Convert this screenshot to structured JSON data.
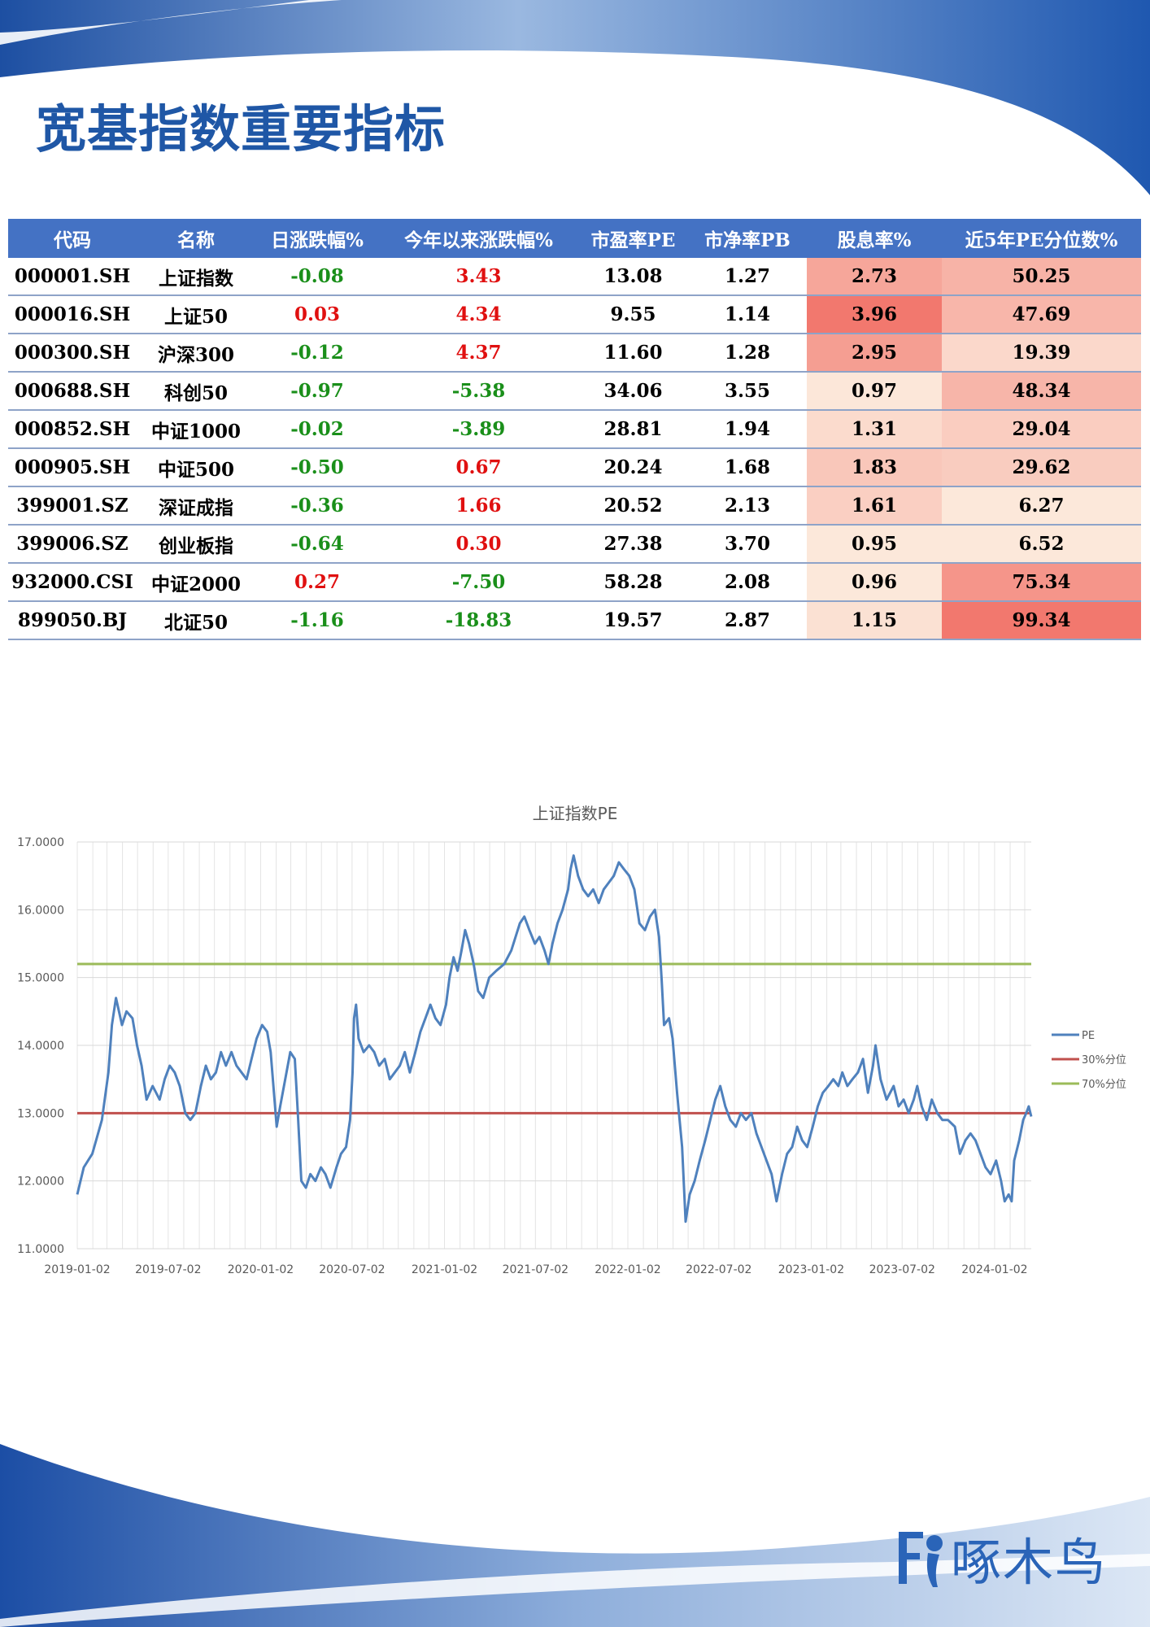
{
  "page": {
    "title": "宽基指数重要指标",
    "brand": "啄木鸟",
    "colors": {
      "title": "#1f57a6",
      "header_bg": "#4472c4",
      "up": "#e01010",
      "down": "#1a8f1a"
    }
  },
  "table": {
    "headers": [
      "代码",
      "名称",
      "日涨跌幅%",
      "今年以来涨跌幅%",
      "市盈率PE",
      "市净率PB",
      "股息率%",
      "近5年PE分位数%"
    ],
    "rows": [
      {
        "code": "000001.SH",
        "name": "上证指数",
        "day": "-0.08",
        "ytd": "3.43",
        "pe": "13.08",
        "pb": "1.27",
        "div": "2.73",
        "pct": "50.25"
      },
      {
        "code": "000016.SH",
        "name": "上证50",
        "day": "0.03",
        "ytd": "4.34",
        "pe": "9.55",
        "pb": "1.14",
        "div": "3.96",
        "pct": "47.69"
      },
      {
        "code": "000300.SH",
        "name": "沪深300",
        "day": "-0.12",
        "ytd": "4.37",
        "pe": "11.60",
        "pb": "1.28",
        "div": "2.95",
        "pct": "19.39"
      },
      {
        "code": "000688.SH",
        "name": "科创50",
        "day": "-0.97",
        "ytd": "-5.38",
        "pe": "34.06",
        "pb": "3.55",
        "div": "0.97",
        "pct": "48.34"
      },
      {
        "code": "000852.SH",
        "name": "中证1000",
        "day": "-0.02",
        "ytd": "-3.89",
        "pe": "28.81",
        "pb": "1.94",
        "div": "1.31",
        "pct": "29.04"
      },
      {
        "code": "000905.SH",
        "name": "中证500",
        "day": "-0.50",
        "ytd": "0.67",
        "pe": "20.24",
        "pb": "1.68",
        "div": "1.83",
        "pct": "29.62"
      },
      {
        "code": "399001.SZ",
        "name": "深证成指",
        "day": "-0.36",
        "ytd": "1.66",
        "pe": "20.52",
        "pb": "2.13",
        "div": "1.61",
        "pct": "6.27"
      },
      {
        "code": "399006.SZ",
        "name": "创业板指",
        "day": "-0.64",
        "ytd": "0.30",
        "pe": "27.38",
        "pb": "3.70",
        "div": "0.95",
        "pct": "6.52"
      },
      {
        "code": "932000.CSI",
        "name": "中证2000",
        "day": "0.27",
        "ytd": "-7.50",
        "pe": "58.28",
        "pb": "2.08",
        "div": "0.96",
        "pct": "75.34"
      },
      {
        "code": "899050.BJ",
        "name": "北证50",
        "day": "-1.16",
        "ytd": "-18.83",
        "pe": "19.57",
        "pb": "2.87",
        "div": "1.15",
        "pct": "99.34"
      }
    ]
  },
  "chart_data": {
    "type": "line",
    "title": "上证指数PE",
    "xlabel": "",
    "ylabel": "",
    "ylim": [
      11,
      17
    ],
    "y_ticks": [
      "11.0000",
      "12.0000",
      "13.0000",
      "14.0000",
      "15.0000",
      "16.0000",
      "17.0000"
    ],
    "x_ticks": [
      "2019-01-02",
      "2019-07-02",
      "2020-01-02",
      "2020-07-02",
      "2021-01-02",
      "2021-07-02",
      "2022-01-02",
      "2022-07-02",
      "2023-01-02",
      "2023-07-02",
      "2024-01-02"
    ],
    "x_range": [
      "2019-01-02",
      "2024-03-15"
    ],
    "grid": true,
    "legend_position": "right",
    "series": [
      {
        "name": "PE",
        "color": "#4f81bd",
        "points": [
          [
            "2019-01-02",
            11.8
          ],
          [
            "2019-01-15",
            12.2
          ],
          [
            "2019-02-01",
            12.4
          ],
          [
            "2019-02-20",
            12.9
          ],
          [
            "2019-03-05",
            13.6
          ],
          [
            "2019-03-12",
            14.3
          ],
          [
            "2019-03-20",
            14.7
          ],
          [
            "2019-04-01",
            14.3
          ],
          [
            "2019-04-10",
            14.5
          ],
          [
            "2019-04-22",
            14.4
          ],
          [
            "2019-05-01",
            14.0
          ],
          [
            "2019-05-10",
            13.7
          ],
          [
            "2019-05-20",
            13.2
          ],
          [
            "2019-06-01",
            13.4
          ],
          [
            "2019-06-15",
            13.2
          ],
          [
            "2019-06-25",
            13.5
          ],
          [
            "2019-07-05",
            13.7
          ],
          [
            "2019-07-15",
            13.6
          ],
          [
            "2019-07-25",
            13.4
          ],
          [
            "2019-08-05",
            13.0
          ],
          [
            "2019-08-15",
            12.9
          ],
          [
            "2019-08-25",
            13.0
          ],
          [
            "2019-09-05",
            13.4
          ],
          [
            "2019-09-15",
            13.7
          ],
          [
            "2019-09-25",
            13.5
          ],
          [
            "2019-10-05",
            13.6
          ],
          [
            "2019-10-15",
            13.9
          ],
          [
            "2019-10-25",
            13.7
          ],
          [
            "2019-11-05",
            13.9
          ],
          [
            "2019-11-15",
            13.7
          ],
          [
            "2019-11-25",
            13.6
          ],
          [
            "2019-12-05",
            13.5
          ],
          [
            "2019-12-15",
            13.8
          ],
          [
            "2019-12-25",
            14.1
          ],
          [
            "2020-01-05",
            14.3
          ],
          [
            "2020-01-15",
            14.2
          ],
          [
            "2020-01-22",
            13.9
          ],
          [
            "2020-02-03",
            12.8
          ],
          [
            "2020-02-10",
            13.1
          ],
          [
            "2020-02-20",
            13.5
          ],
          [
            "2020-03-01",
            13.9
          ],
          [
            "2020-03-10",
            13.8
          ],
          [
            "2020-03-16",
            13.0
          ],
          [
            "2020-03-23",
            12.0
          ],
          [
            "2020-04-01",
            11.9
          ],
          [
            "2020-04-10",
            12.1
          ],
          [
            "2020-04-20",
            12.0
          ],
          [
            "2020-05-01",
            12.2
          ],
          [
            "2020-05-10",
            12.1
          ],
          [
            "2020-05-20",
            11.9
          ],
          [
            "2020-06-01",
            12.2
          ],
          [
            "2020-06-10",
            12.4
          ],
          [
            "2020-06-20",
            12.5
          ],
          [
            "2020-06-28",
            12.9
          ],
          [
            "2020-07-03",
            13.6
          ],
          [
            "2020-07-06",
            14.4
          ],
          [
            "2020-07-10",
            14.6
          ],
          [
            "2020-07-15",
            14.1
          ],
          [
            "2020-07-25",
            13.9
          ],
          [
            "2020-08-05",
            14.0
          ],
          [
            "2020-08-15",
            13.9
          ],
          [
            "2020-08-25",
            13.7
          ],
          [
            "2020-09-05",
            13.8
          ],
          [
            "2020-09-15",
            13.5
          ],
          [
            "2020-09-25",
            13.6
          ],
          [
            "2020-10-05",
            13.7
          ],
          [
            "2020-10-15",
            13.9
          ],
          [
            "2020-10-25",
            13.6
          ],
          [
            "2020-11-05",
            13.9
          ],
          [
            "2020-11-15",
            14.2
          ],
          [
            "2020-11-25",
            14.4
          ],
          [
            "2020-12-05",
            14.6
          ],
          [
            "2020-12-15",
            14.4
          ],
          [
            "2020-12-25",
            14.3
          ],
          [
            "2021-01-05",
            14.6
          ],
          [
            "2021-01-12",
            15.0
          ],
          [
            "2021-01-20",
            15.3
          ],
          [
            "2021-01-28",
            15.1
          ],
          [
            "2021-02-05",
            15.4
          ],
          [
            "2021-02-12",
            15.7
          ],
          [
            "2021-02-20",
            15.5
          ],
          [
            "2021-03-01",
            15.2
          ],
          [
            "2021-03-10",
            14.8
          ],
          [
            "2021-03-20",
            14.7
          ],
          [
            "2021-04-01",
            15.0
          ],
          [
            "2021-04-15",
            15.1
          ],
          [
            "2021-05-01",
            15.2
          ],
          [
            "2021-05-15",
            15.4
          ],
          [
            "2021-06-01",
            15.8
          ],
          [
            "2021-06-10",
            15.9
          ],
          [
            "2021-06-20",
            15.7
          ],
          [
            "2021-07-01",
            15.5
          ],
          [
            "2021-07-10",
            15.6
          ],
          [
            "2021-07-20",
            15.4
          ],
          [
            "2021-07-28",
            15.2
          ],
          [
            "2021-08-05",
            15.5
          ],
          [
            "2021-08-15",
            15.8
          ],
          [
            "2021-08-25",
            16.0
          ],
          [
            "2021-09-05",
            16.3
          ],
          [
            "2021-09-10",
            16.6
          ],
          [
            "2021-09-16",
            16.8
          ],
          [
            "2021-09-25",
            16.5
          ],
          [
            "2021-10-05",
            16.3
          ],
          [
            "2021-10-15",
            16.2
          ],
          [
            "2021-10-25",
            16.3
          ],
          [
            "2021-11-05",
            16.1
          ],
          [
            "2021-11-15",
            16.3
          ],
          [
            "2021-11-25",
            16.4
          ],
          [
            "2021-12-05",
            16.5
          ],
          [
            "2021-12-15",
            16.7
          ],
          [
            "2021-12-25",
            16.6
          ],
          [
            "2022-01-05",
            16.5
          ],
          [
            "2022-01-15",
            16.3
          ],
          [
            "2022-01-25",
            15.8
          ],
          [
            "2022-02-05",
            15.7
          ],
          [
            "2022-02-15",
            15.9
          ],
          [
            "2022-02-25",
            16.0
          ],
          [
            "2022-03-05",
            15.6
          ],
          [
            "2022-03-10",
            15.0
          ],
          [
            "2022-03-15",
            14.3
          ],
          [
            "2022-03-25",
            14.4
          ],
          [
            "2022-04-01",
            14.1
          ],
          [
            "2022-04-10",
            13.3
          ],
          [
            "2022-04-20",
            12.5
          ],
          [
            "2022-04-27",
            11.4
          ],
          [
            "2022-05-05",
            11.8
          ],
          [
            "2022-05-15",
            12.0
          ],
          [
            "2022-05-25",
            12.3
          ],
          [
            "2022-06-05",
            12.6
          ],
          [
            "2022-06-15",
            12.9
          ],
          [
            "2022-06-25",
            13.2
          ],
          [
            "2022-07-05",
            13.4
          ],
          [
            "2022-07-15",
            13.1
          ],
          [
            "2022-07-25",
            12.9
          ],
          [
            "2022-08-05",
            12.8
          ],
          [
            "2022-08-15",
            13.0
          ],
          [
            "2022-08-25",
            12.9
          ],
          [
            "2022-09-05",
            13.0
          ],
          [
            "2022-09-15",
            12.7
          ],
          [
            "2022-09-25",
            12.5
          ],
          [
            "2022-10-05",
            12.3
          ],
          [
            "2022-10-15",
            12.1
          ],
          [
            "2022-10-25",
            11.7
          ],
          [
            "2022-11-05",
            12.1
          ],
          [
            "2022-11-15",
            12.4
          ],
          [
            "2022-11-25",
            12.5
          ],
          [
            "2022-12-05",
            12.8
          ],
          [
            "2022-12-15",
            12.6
          ],
          [
            "2022-12-25",
            12.5
          ],
          [
            "2023-01-05",
            12.8
          ],
          [
            "2023-01-15",
            13.1
          ],
          [
            "2023-01-25",
            13.3
          ],
          [
            "2023-02-05",
            13.4
          ],
          [
            "2023-02-15",
            13.5
          ],
          [
            "2023-02-25",
            13.4
          ],
          [
            "2023-03-05",
            13.6
          ],
          [
            "2023-03-15",
            13.4
          ],
          [
            "2023-03-25",
            13.5
          ],
          [
            "2023-04-05",
            13.6
          ],
          [
            "2023-04-15",
            13.8
          ],
          [
            "2023-04-25",
            13.3
          ],
          [
            "2023-05-05",
            13.7
          ],
          [
            "2023-05-10",
            14.0
          ],
          [
            "2023-05-20",
            13.5
          ],
          [
            "2023-06-01",
            13.2
          ],
          [
            "2023-06-15",
            13.4
          ],
          [
            "2023-06-25",
            13.1
          ],
          [
            "2023-07-05",
            13.2
          ],
          [
            "2023-07-15",
            13.0
          ],
          [
            "2023-07-25",
            13.2
          ],
          [
            "2023-08-01",
            13.4
          ],
          [
            "2023-08-10",
            13.1
          ],
          [
            "2023-08-20",
            12.9
          ],
          [
            "2023-08-30",
            13.2
          ],
          [
            "2023-09-10",
            13.0
          ],
          [
            "2023-09-20",
            12.9
          ],
          [
            "2023-10-01",
            12.9
          ],
          [
            "2023-10-15",
            12.8
          ],
          [
            "2023-10-25",
            12.4
          ],
          [
            "2023-11-05",
            12.6
          ],
          [
            "2023-11-15",
            12.7
          ],
          [
            "2023-11-25",
            12.6
          ],
          [
            "2023-12-05",
            12.4
          ],
          [
            "2023-12-15",
            12.2
          ],
          [
            "2023-12-25",
            12.1
          ],
          [
            "2024-01-05",
            12.3
          ],
          [
            "2024-01-15",
            12.0
          ],
          [
            "2024-01-22",
            11.7
          ],
          [
            "2024-01-30",
            11.8
          ],
          [
            "2024-02-05",
            11.7
          ],
          [
            "2024-02-10",
            12.3
          ],
          [
            "2024-02-20",
            12.6
          ],
          [
            "2024-02-28",
            12.9
          ],
          [
            "2024-03-05",
            13.0
          ],
          [
            "2024-03-10",
            13.1
          ],
          [
            "2024-03-15",
            12.95
          ]
        ]
      },
      {
        "name": "30%分位",
        "color": "#c0504d",
        "value": 13.0
      },
      {
        "name": "70%分位",
        "color": "#9bbb59",
        "value": 15.2
      }
    ]
  }
}
